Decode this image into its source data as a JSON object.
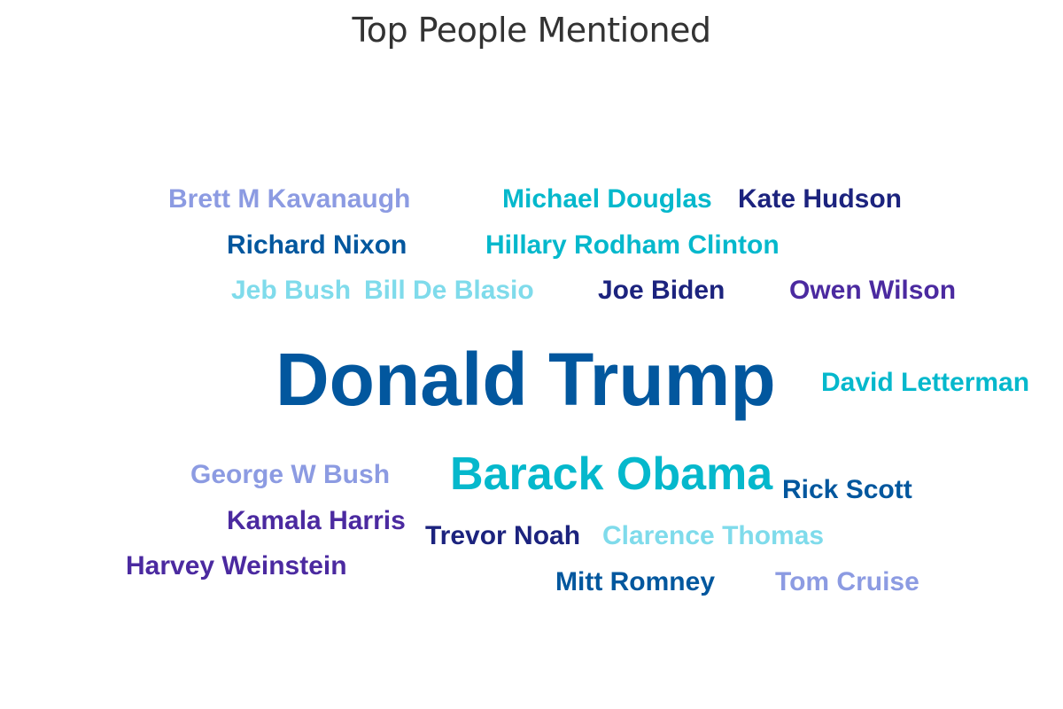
{
  "chart_data": {
    "type": "wordcloud",
    "title": "Top People Mentioned",
    "words": [
      {
        "text": "Donald Trump",
        "weight": 100,
        "color": "#02579E"
      },
      {
        "text": "Barack Obama",
        "weight": 62,
        "color": "#05B8CC"
      },
      {
        "text": "Brett M Kavanaugh",
        "weight": 38,
        "color": "#8C9BE2"
      },
      {
        "text": "Michael Douglas",
        "weight": 38,
        "color": "#05B8CC"
      },
      {
        "text": "Kate Hudson",
        "weight": 38,
        "color": "#1C237E"
      },
      {
        "text": "Richard Nixon",
        "weight": 38,
        "color": "#02579E"
      },
      {
        "text": "Hillary Rodham Clinton",
        "weight": 38,
        "color": "#05B8CC"
      },
      {
        "text": "Jeb Bush",
        "weight": 38,
        "color": "#7FDBEB"
      },
      {
        "text": "Bill De Blasio",
        "weight": 38,
        "color": "#7FDBEB"
      },
      {
        "text": "Joe Biden",
        "weight": 38,
        "color": "#1C237E"
      },
      {
        "text": "Owen Wilson",
        "weight": 38,
        "color": "#4B2AA0"
      },
      {
        "text": "David Letterman",
        "weight": 38,
        "color": "#05B8CC"
      },
      {
        "text": "George W Bush",
        "weight": 38,
        "color": "#8C9BE2"
      },
      {
        "text": "Rick Scott",
        "weight": 38,
        "color": "#02579E"
      },
      {
        "text": "Kamala Harris",
        "weight": 38,
        "color": "#4B2AA0"
      },
      {
        "text": "Trevor Noah",
        "weight": 38,
        "color": "#1C237E"
      },
      {
        "text": "Clarence Thomas",
        "weight": 38,
        "color": "#7FDBEB"
      },
      {
        "text": "Harvey Weinstein",
        "weight": 38,
        "color": "#4B2AA0"
      },
      {
        "text": "Mitt Romney",
        "weight": 38,
        "color": "#02579E"
      },
      {
        "text": "Tom Cruise",
        "weight": 38,
        "color": "#8C9BE2"
      }
    ]
  }
}
